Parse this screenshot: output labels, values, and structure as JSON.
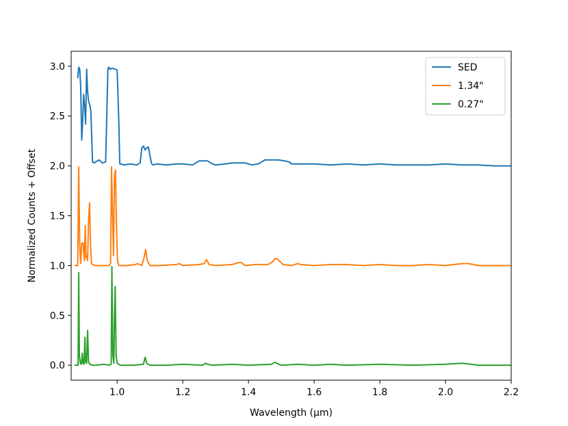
{
  "chart_data": {
    "type": "line",
    "title": "",
    "xlabel": "Wavelength (μm)",
    "ylabel": "Normalized Counts + Offset",
    "xlim": [
      0.86,
      2.2
    ],
    "ylim": [
      -0.15,
      3.15
    ],
    "xticks": [
      1.0,
      1.2,
      1.4,
      1.6,
      1.8,
      2.0,
      2.2
    ],
    "xtick_labels": [
      "1.0",
      "1.2",
      "1.4",
      "1.6",
      "1.8",
      "2.0",
      "2.2"
    ],
    "yticks": [
      0.0,
      0.5,
      1.0,
      1.5,
      2.0,
      2.5,
      3.0
    ],
    "ytick_labels": [
      "0.0",
      "0.5",
      "1.0",
      "1.5",
      "2.0",
      "2.5",
      "3.0"
    ],
    "grid": false,
    "legend_position": "top-right",
    "series": [
      {
        "name": "SED",
        "color": "#1f77b4",
        "x": [
          0.88,
          0.883,
          0.886,
          0.889,
          0.892,
          0.895,
          0.898,
          0.901,
          0.904,
          0.907,
          0.91,
          0.913,
          0.916,
          0.92,
          0.925,
          0.93,
          0.935,
          0.945,
          0.955,
          0.965,
          0.972,
          0.975,
          0.978,
          0.985,
          0.995,
          1.0,
          1.005,
          1.008,
          1.012,
          1.02,
          1.04,
          1.06,
          1.07,
          1.075,
          1.08,
          1.085,
          1.09,
          1.095,
          1.1,
          1.105,
          1.11,
          1.12,
          1.15,
          1.18,
          1.2,
          1.23,
          1.25,
          1.26,
          1.275,
          1.29,
          1.3,
          1.33,
          1.35,
          1.37,
          1.39,
          1.41,
          1.43,
          1.45,
          1.47,
          1.49,
          1.51,
          1.525,
          1.53,
          1.56,
          1.6,
          1.65,
          1.7,
          1.75,
          1.8,
          1.85,
          1.9,
          1.95,
          2.0,
          2.05,
          2.1,
          2.15,
          2.2
        ],
        "y": [
          2.88,
          2.99,
          2.97,
          2.8,
          2.26,
          2.45,
          2.72,
          2.6,
          2.42,
          2.97,
          2.75,
          2.65,
          2.62,
          2.55,
          2.04,
          2.03,
          2.04,
          2.06,
          2.03,
          2.04,
          2.98,
          2.99,
          2.97,
          2.98,
          2.97,
          2.96,
          2.45,
          2.02,
          2.02,
          2.01,
          2.02,
          2.01,
          2.03,
          2.18,
          2.2,
          2.16,
          2.18,
          2.19,
          2.1,
          2.02,
          2.01,
          2.02,
          2.01,
          2.02,
          2.02,
          2.01,
          2.05,
          2.05,
          2.05,
          2.02,
          2.01,
          2.02,
          2.03,
          2.03,
          2.03,
          2.01,
          2.02,
          2.06,
          2.06,
          2.06,
          2.05,
          2.04,
          2.02,
          2.02,
          2.02,
          2.01,
          2.02,
          2.01,
          2.02,
          2.01,
          2.01,
          2.01,
          2.02,
          2.01,
          2.01,
          2.0,
          2.0
        ]
      },
      {
        "name": "1.34\"",
        "color": "#ff7f0e",
        "x": [
          0.87,
          0.88,
          0.883,
          0.886,
          0.889,
          0.892,
          0.896,
          0.9,
          0.903,
          0.905,
          0.907,
          0.91,
          0.913,
          0.916,
          0.919,
          0.922,
          0.925,
          0.935,
          0.96,
          0.975,
          0.98,
          0.983,
          0.986,
          0.989,
          0.992,
          0.995,
          0.998,
          1.001,
          1.005,
          1.03,
          1.055,
          1.062,
          1.075,
          1.082,
          1.087,
          1.092,
          1.1,
          1.13,
          1.18,
          1.19,
          1.2,
          1.25,
          1.265,
          1.272,
          1.28,
          1.3,
          1.35,
          1.37,
          1.378,
          1.39,
          1.42,
          1.46,
          1.475,
          1.48,
          1.487,
          1.493,
          1.505,
          1.53,
          1.55,
          1.56,
          1.6,
          1.65,
          1.7,
          1.75,
          1.8,
          1.85,
          1.9,
          1.95,
          2.0,
          2.05,
          2.07,
          2.1,
          2.15,
          2.2
        ],
        "y": [
          1.0,
          1.0,
          1.99,
          1.2,
          1.02,
          1.22,
          1.23,
          1.05,
          1.4,
          1.08,
          1.1,
          1.05,
          1.45,
          1.63,
          1.2,
          1.02,
          1.01,
          1.0,
          1.0,
          1.0,
          1.02,
          1.99,
          1.5,
          1.1,
          1.9,
          1.96,
          1.4,
          1.05,
          1.0,
          1.0,
          1.01,
          1.02,
          1.0,
          1.08,
          1.16,
          1.05,
          1.0,
          1.0,
          1.01,
          1.02,
          1.0,
          1.01,
          1.02,
          1.06,
          1.01,
          1.0,
          1.01,
          1.03,
          1.03,
          1.0,
          1.01,
          1.01,
          1.04,
          1.07,
          1.07,
          1.05,
          1.01,
          1.0,
          1.02,
          1.01,
          1.0,
          1.01,
          1.01,
          1.0,
          1.01,
          1.0,
          1.0,
          1.01,
          1.0,
          1.02,
          1.02,
          1.0,
          1.0,
          1.0
        ]
      },
      {
        "name": "0.27\"",
        "color": "#2ca02c",
        "x": [
          0.87,
          0.881,
          0.883,
          0.885,
          0.888,
          0.891,
          0.894,
          0.896,
          0.899,
          0.902,
          0.904,
          0.907,
          0.91,
          0.913,
          0.916,
          0.919,
          0.923,
          0.935,
          0.96,
          0.975,
          0.982,
          0.984,
          0.987,
          0.99,
          0.992,
          0.994,
          0.997,
          1.0,
          1.01,
          1.05,
          1.08,
          1.085,
          1.09,
          1.095,
          1.1,
          1.15,
          1.2,
          1.26,
          1.27,
          1.275,
          1.29,
          1.35,
          1.4,
          1.47,
          1.48,
          1.485,
          1.492,
          1.5,
          1.55,
          1.6,
          1.65,
          1.7,
          1.8,
          1.9,
          2.0,
          2.05,
          2.08,
          2.1,
          2.15,
          2.2
        ],
        "y": [
          0.0,
          0.0,
          0.93,
          0.1,
          0.02,
          0.01,
          0.12,
          0.02,
          0.01,
          0.28,
          0.03,
          0.02,
          0.35,
          0.04,
          0.01,
          0.01,
          0.0,
          0.0,
          0.01,
          0.0,
          0.01,
          0.99,
          0.1,
          0.02,
          0.5,
          0.79,
          0.1,
          0.02,
          0.0,
          0.0,
          0.01,
          0.08,
          0.02,
          0.01,
          0.0,
          0.0,
          0.01,
          0.0,
          0.02,
          0.01,
          0.0,
          0.01,
          0.0,
          0.01,
          0.03,
          0.02,
          0.01,
          0.0,
          0.01,
          0.0,
          0.01,
          0.0,
          0.01,
          0.0,
          0.01,
          0.02,
          0.01,
          0.0,
          0.0,
          0.0
        ]
      }
    ]
  }
}
